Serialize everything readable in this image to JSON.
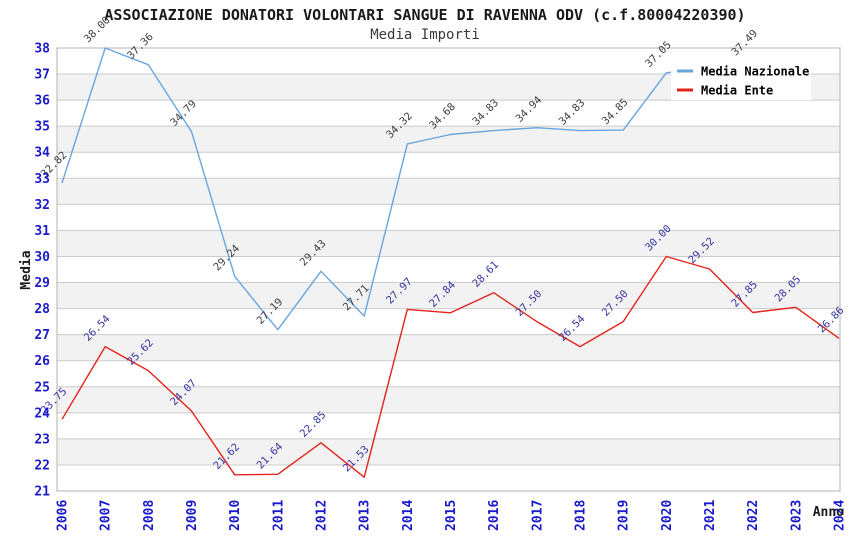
{
  "header": {
    "title": "ASSOCIAZIONE DONATORI VOLONTARI SANGUE DI RAVENNA ODV (c.f.80004220390)",
    "subtitle": "Media Importi"
  },
  "chart_data": {
    "type": "line",
    "title": "ASSOCIAZIONE DONATORI VOLONTARI SANGUE DI RAVENNA ODV (c.f.80004220390)",
    "subtitle": "Media Importi",
    "xlabel": "Anno",
    "ylabel": "Media",
    "ylim": [
      21,
      38
    ],
    "y_ticks": [
      21,
      22,
      23,
      24,
      25,
      26,
      27,
      28,
      29,
      30,
      31,
      32,
      33,
      34,
      35,
      36,
      37,
      38
    ],
    "x": [
      2006,
      2007,
      2008,
      2009,
      2010,
      2011,
      2012,
      2013,
      2014,
      2015,
      2016,
      2017,
      2018,
      2019,
      2020,
      2021,
      2022,
      2023,
      2024
    ],
    "grid": "horizontal gridlines, alternating gray bands on even-to-odd intervals",
    "legend_position": "top-right inset",
    "tick_color": "#1a1acc",
    "band_color": "#f2f2f2",
    "grid_color": "#cccccc",
    "border_color": "#b3b3b3",
    "series": [
      {
        "name": "Media Nazionale",
        "color": "#6aa5de",
        "label_color": "#3c3c42",
        "values": [
          32.82,
          38.0,
          37.36,
          34.79,
          29.24,
          27.19,
          29.43,
          27.71,
          34.32,
          34.68,
          34.83,
          34.94,
          34.83,
          34.85,
          37.05,
          null,
          37.49,
          null,
          null
        ],
        "note": "points for 2021, 2023 and 2024 are hidden behind the legend box"
      },
      {
        "name": "Media Ente",
        "color": "#e3231c",
        "label_color": "#3434a0",
        "values": [
          23.75,
          26.54,
          25.62,
          24.07,
          21.62,
          21.64,
          22.85,
          21.53,
          27.97,
          27.84,
          28.61,
          27.5,
          26.54,
          27.5,
          30.0,
          29.52,
          27.85,
          28.05,
          26.86
        ]
      }
    ]
  }
}
